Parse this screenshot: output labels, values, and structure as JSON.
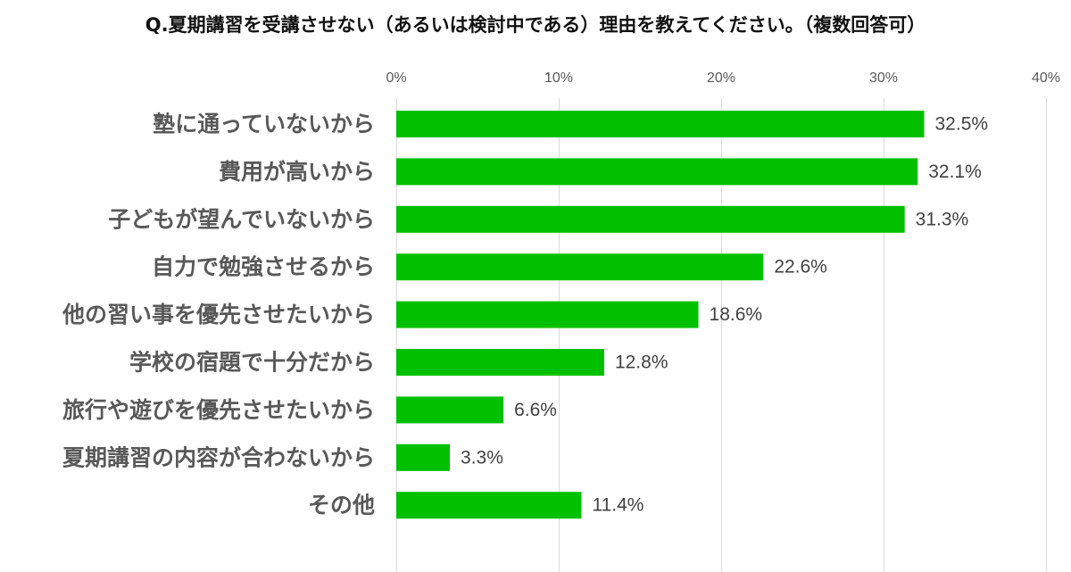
{
  "chart_data": {
    "type": "bar",
    "orientation": "horizontal",
    "title": "Q.夏期講習を受講させない（あるいは検討中である）理由を教えてください。（複数回答可）",
    "categories": [
      "塾に通っていないから",
      "費用が高いから",
      "子どもが望んでいないから",
      "自力で勉強させるから",
      "他の習い事を優先させたいから",
      "学校の宿題で十分だから",
      "旅行や遊びを優先させたいから",
      "夏期講習の内容が合わないから",
      "その他"
    ],
    "values": [
      32.5,
      32.1,
      31.3,
      22.6,
      18.6,
      12.8,
      6.6,
      3.3,
      11.4
    ],
    "value_labels": [
      "32.5%",
      "32.1%",
      "31.3%",
      "22.6%",
      "18.6%",
      "12.8%",
      "6.6%",
      "3.3%",
      "11.4%"
    ],
    "xlim": [
      0,
      40
    ],
    "x_ticks": [
      0,
      10,
      20,
      30,
      40
    ],
    "x_tick_labels": [
      "0%",
      "10%",
      "20%",
      "30%",
      "40%"
    ],
    "x_axis_position": "top",
    "grid": true,
    "legend": "none",
    "bar_color": "#00c000",
    "grid_color": "#d9d9d9"
  }
}
